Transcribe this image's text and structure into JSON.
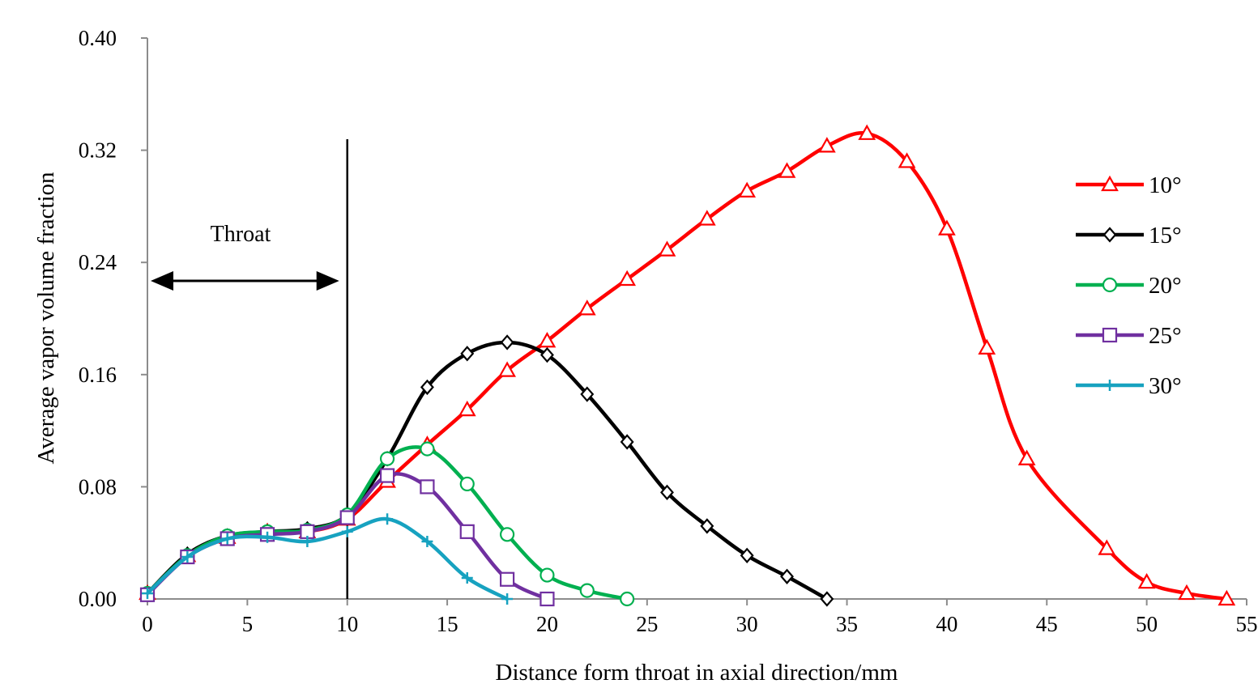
{
  "chart_data": {
    "type": "line",
    "xlabel": "Distance form throat in axial direction/mm",
    "ylabel": "Average vapor volume fraction",
    "xlim": [
      0,
      55
    ],
    "ylim": [
      0,
      0.4
    ],
    "x_ticks": [
      "0",
      "5",
      "10",
      "15",
      "20",
      "25",
      "30",
      "35",
      "40",
      "45",
      "50",
      "55"
    ],
    "y_ticks": [
      "0.00",
      "0.08",
      "0.16",
      "0.24",
      "0.32",
      "0.40"
    ],
    "grid": false,
    "legend_position": "right",
    "annotations": {
      "throat_label": "Throat",
      "throat_range": [
        0,
        10
      ],
      "throat_line_x": 10
    },
    "series": [
      {
        "name": "10°",
        "color": "#ff0000",
        "marker": "triangle",
        "x": [
          0,
          2,
          4,
          6,
          8,
          10,
          12,
          14,
          16,
          18,
          20,
          22,
          24,
          26,
          28,
          30,
          32,
          34,
          36,
          38,
          40,
          42,
          44,
          48,
          50,
          52,
          54
        ],
        "y": [
          0.004,
          0.031,
          0.044,
          0.048,
          0.048,
          0.057,
          0.084,
          0.11,
          0.135,
          0.163,
          0.184,
          0.207,
          0.228,
          0.249,
          0.271,
          0.291,
          0.305,
          0.323,
          0.332,
          0.312,
          0.264,
          0.179,
          0.1,
          0.036,
          0.012,
          0.004,
          0.0
        ]
      },
      {
        "name": "15°",
        "color": "#000000",
        "marker": "diamond",
        "x": [
          0,
          2,
          4,
          6,
          8,
          10,
          12,
          14,
          16,
          18,
          20,
          22,
          24,
          26,
          28,
          30,
          32,
          34
        ],
        "y": [
          0.004,
          0.032,
          0.045,
          0.048,
          0.05,
          0.06,
          0.1,
          0.151,
          0.175,
          0.183,
          0.174,
          0.146,
          0.112,
          0.076,
          0.052,
          0.031,
          0.016,
          0.0
        ]
      },
      {
        "name": "20°",
        "color": "#00b050",
        "marker": "circle",
        "x": [
          0,
          2,
          4,
          6,
          8,
          10,
          12,
          14,
          16,
          18,
          20,
          22,
          24
        ],
        "y": [
          0.004,
          0.031,
          0.045,
          0.048,
          0.049,
          0.06,
          0.1,
          0.107,
          0.082,
          0.046,
          0.017,
          0.006,
          0.0
        ]
      },
      {
        "name": "25°",
        "color": "#7030a0",
        "marker": "square",
        "x": [
          0,
          2,
          4,
          6,
          8,
          10,
          12,
          14,
          16,
          18,
          20
        ],
        "y": [
          0.003,
          0.03,
          0.043,
          0.046,
          0.048,
          0.058,
          0.088,
          0.08,
          0.048,
          0.014,
          0.0
        ]
      },
      {
        "name": "30°",
        "color": "#17a2c0",
        "marker": "plus",
        "x": [
          0,
          2,
          4,
          6,
          8,
          10,
          12,
          14,
          16,
          18
        ],
        "y": [
          0.004,
          0.03,
          0.043,
          0.044,
          0.041,
          0.048,
          0.057,
          0.041,
          0.015,
          0.0
        ]
      }
    ]
  }
}
